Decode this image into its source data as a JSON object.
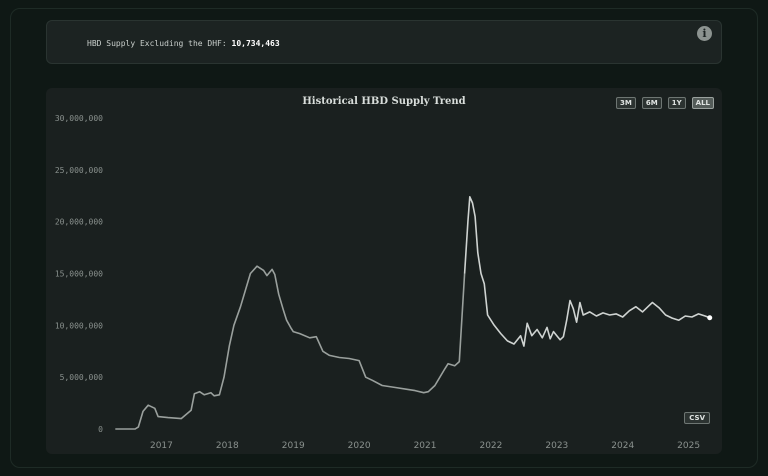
{
  "info": {
    "label": "HBD Supply Excluding the DHF: ",
    "value": "10,734,463",
    "icon": "info-icon"
  },
  "chart_controls": {
    "ranges": [
      "3M",
      "6M",
      "1Y",
      "ALL"
    ],
    "active": "ALL",
    "csv_label": "CSV"
  },
  "chart_data": {
    "type": "line",
    "title": "Historical HBD Supply Trend",
    "xlabel": "",
    "ylabel": "",
    "ylim": [
      0,
      30000000
    ],
    "yticks": [
      "30,000,000",
      "25,000,000",
      "20,000,000",
      "15,000,000",
      "10,000,000",
      "5,000,000",
      "0"
    ],
    "ytick_values": [
      30000000,
      25000000,
      20000000,
      15000000,
      10000000,
      5000000,
      0
    ],
    "xticks": [
      "2017",
      "2018",
      "2019",
      "2020",
      "2021",
      "2022",
      "2023",
      "2024",
      "2025"
    ],
    "xtick_values": [
      2017,
      2018,
      2019,
      2020,
      2021,
      2022,
      2023,
      2024,
      2025
    ],
    "xlim": [
      2016.25,
      2025.4
    ],
    "grid": false,
    "legend": "none",
    "line_color": "#cfd3d1",
    "end_marker_color": "#ffffff",
    "series": [
      {
        "x": [
          2016.3,
          2016.6,
          2016.65,
          2016.72,
          2016.8,
          2016.9,
          2016.95,
          2017.1,
          2017.3,
          2017.45,
          2017.5,
          2017.58,
          2017.65,
          2017.75,
          2017.8,
          2017.88,
          2017.95,
          2018.03,
          2018.1,
          2018.2,
          2018.35,
          2018.45,
          2018.55,
          2018.6,
          2018.68,
          2018.72,
          2018.78,
          2018.85,
          2018.9,
          2018.96,
          2019.0,
          2019.1,
          2019.25,
          2019.35,
          2019.45,
          2019.55,
          2019.7,
          2019.85,
          2020.0,
          2020.1,
          2020.2,
          2020.35,
          2020.55,
          2020.75,
          2020.85,
          2020.98,
          2021.05,
          2021.15,
          2021.3,
          2021.35,
          2021.45,
          2021.52,
          2021.6,
          2021.65,
          2021.68,
          2021.72,
          2021.76,
          2021.8,
          2021.85,
          2021.9,
          2021.95,
          2022.05,
          2022.15,
          2022.25,
          2022.35,
          2022.45,
          2022.5,
          2022.55,
          2022.62,
          2022.7,
          2022.78,
          2022.85,
          2022.9,
          2022.95,
          2023.0,
          2023.05,
          2023.1,
          2023.15,
          2023.2,
          2023.25,
          2023.3,
          2023.35,
          2023.4,
          2023.5,
          2023.6,
          2023.7,
          2023.8,
          2023.9,
          2024.0,
          2024.1,
          2024.2,
          2024.3,
          2024.4,
          2024.45,
          2024.55,
          2024.65,
          2024.75,
          2024.85,
          2024.95,
          2025.05,
          2025.15,
          2025.25,
          2025.32
        ],
        "y": [
          0,
          0,
          200000,
          1700000,
          2300000,
          2000000,
          1200000,
          1100000,
          1000000,
          1800000,
          3400000,
          3600000,
          3300000,
          3500000,
          3200000,
          3300000,
          5000000,
          8000000,
          10000000,
          11800000,
          15000000,
          15700000,
          15300000,
          14800000,
          15400000,
          14900000,
          13000000,
          11500000,
          10500000,
          9800000,
          9400000,
          9200000,
          8800000,
          8900000,
          7500000,
          7100000,
          6900000,
          6800000,
          6600000,
          5000000,
          4700000,
          4200000,
          4000000,
          3800000,
          3700000,
          3500000,
          3600000,
          4200000,
          5800000,
          6300000,
          6100000,
          6500000,
          15000000,
          20000000,
          22400000,
          21800000,
          20500000,
          17000000,
          15000000,
          14000000,
          11000000,
          10000000,
          9200000,
          8500000,
          8200000,
          9000000,
          8000000,
          10200000,
          9000000,
          9600000,
          8800000,
          9800000,
          8700000,
          9400000,
          9000000,
          8600000,
          8900000,
          10500000,
          12400000,
          11600000,
          10300000,
          12200000,
          11000000,
          11300000,
          10900000,
          11200000,
          11000000,
          11100000,
          10800000,
          11400000,
          11800000,
          11300000,
          11900000,
          12200000,
          11700000,
          11000000,
          10700000,
          10500000,
          10900000,
          10800000,
          11100000,
          10900000,
          10734463
        ]
      }
    ]
  }
}
